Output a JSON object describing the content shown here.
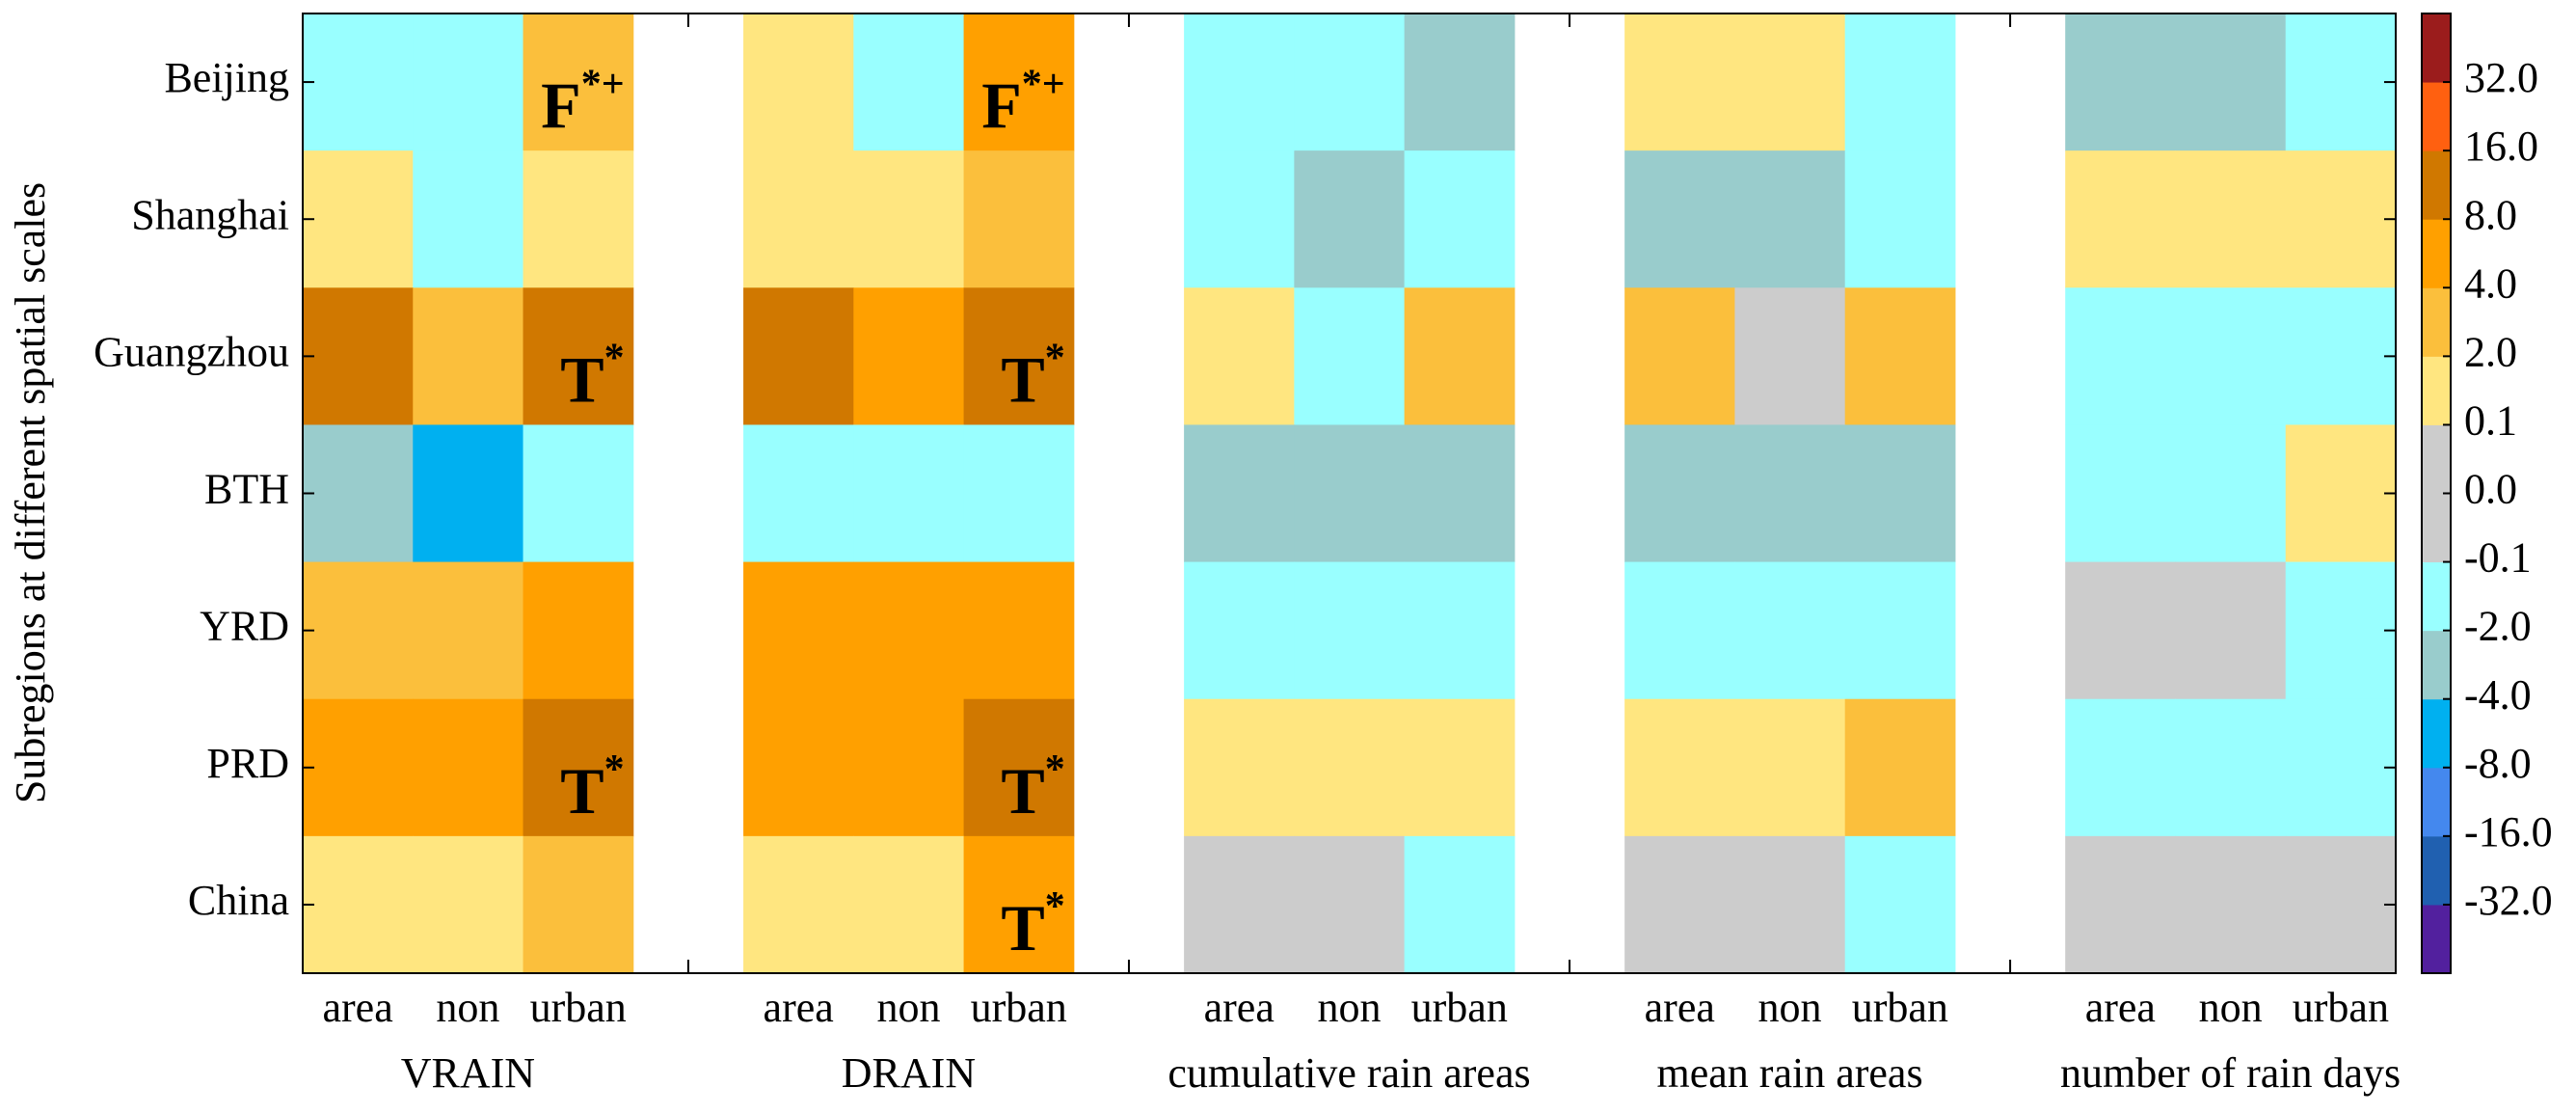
{
  "chart_data": {
    "type": "heatmap",
    "y_label": "Subregions at different spatial scales",
    "rows": [
      "Beijing",
      "Shanghai",
      "Guangzhou",
      "BTH",
      "YRD",
      "PRD",
      "China"
    ],
    "columns": [
      "area",
      "non",
      "urban"
    ],
    "groups": [
      {
        "name": "VRAIN",
        "values": [
          [
            -1,
            -1,
            3
          ],
          [
            1,
            -1,
            1
          ],
          [
            10,
            3,
            10
          ],
          [
            -3,
            -5,
            -1
          ],
          [
            3,
            3,
            5
          ],
          [
            5,
            5,
            10
          ],
          [
            1,
            1,
            3
          ]
        ]
      },
      {
        "name": "DRAIN",
        "values": [
          [
            1,
            -1,
            5
          ],
          [
            1,
            1,
            3
          ],
          [
            10,
            5,
            10
          ],
          [
            -1,
            -1,
            -1
          ],
          [
            5,
            5,
            5
          ],
          [
            5,
            5,
            10
          ],
          [
            1,
            1,
            5
          ]
        ]
      },
      {
        "name": "cumulative rain areas",
        "values": [
          [
            -1,
            -1,
            -3
          ],
          [
            -1,
            -3,
            -1
          ],
          [
            1,
            -1,
            3
          ],
          [
            -3,
            -3,
            -3
          ],
          [
            -1,
            -1,
            -1
          ],
          [
            1,
            1,
            1
          ],
          [
            0,
            0,
            -1
          ]
        ]
      },
      {
        "name": "mean rain areas",
        "values": [
          [
            1,
            1,
            -1
          ],
          [
            -3,
            -3,
            -1
          ],
          [
            3,
            0,
            3
          ],
          [
            -3,
            -3,
            -3
          ],
          [
            -1,
            -1,
            -1
          ],
          [
            1,
            1,
            3
          ],
          [
            0,
            0,
            -1
          ]
        ]
      },
      {
        "name": "number of rain days",
        "values": [
          [
            -3,
            -3,
            -1
          ],
          [
            1,
            1,
            1
          ],
          [
            -1,
            -1,
            -1
          ],
          [
            -1,
            -1,
            1
          ],
          [
            0,
            0,
            -1
          ],
          [
            -1,
            -1,
            -1
          ],
          [
            0,
            0,
            0
          ]
        ]
      }
    ],
    "annotations": [
      {
        "group": 0,
        "row": 0,
        "col": 2,
        "text": "F",
        "sup": "*+"
      },
      {
        "group": 0,
        "row": 2,
        "col": 2,
        "text": "T",
        "sup": "*"
      },
      {
        "group": 0,
        "row": 5,
        "col": 2,
        "text": "T",
        "sup": "*"
      },
      {
        "group": 1,
        "row": 0,
        "col": 2,
        "text": "F",
        "sup": "*+"
      },
      {
        "group": 1,
        "row": 2,
        "col": 2,
        "text": "T",
        "sup": "*"
      },
      {
        "group": 1,
        "row": 5,
        "col": 2,
        "text": "T",
        "sup": "*"
      },
      {
        "group": 1,
        "row": 6,
        "col": 2,
        "text": "T",
        "sup": "*"
      }
    ],
    "colorbar": {
      "ticks": [
        {
          "value": -32,
          "label": "-32.0"
        },
        {
          "value": -16,
          "label": "-16.0"
        },
        {
          "value": -8,
          "label": "-8.0"
        },
        {
          "value": -4,
          "label": "-4.0"
        },
        {
          "value": -2,
          "label": "-2.0"
        },
        -0.1,
        {
          "value": 0,
          "label": "0.0"
        },
        0.1,
        {
          "value": 2,
          "label": "2.0"
        },
        {
          "value": 4,
          "label": "4.0"
        },
        {
          "value": 8,
          "label": "8.0"
        },
        {
          "value": 16,
          "label": "16.0"
        },
        {
          "value": 32,
          "label": "32.0"
        }
      ],
      "colors": [
        "#52209e",
        "#2060b0",
        "#4488ee",
        "#00b0f0",
        "#99cccc",
        "#99ffff",
        "#cccccc",
        "#cccccc",
        "#ffe680",
        "#fbbf3c",
        "#ffa000",
        "#d07800",
        "#ff6010",
        "#9b1c1c"
      ]
    }
  }
}
